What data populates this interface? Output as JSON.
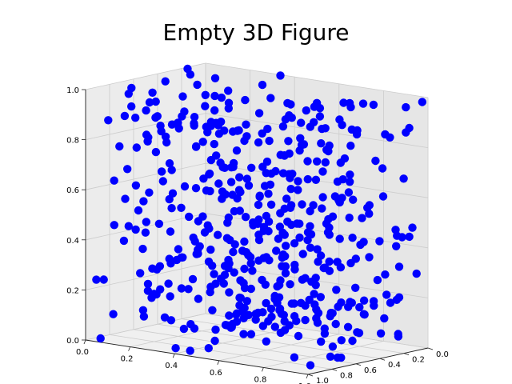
{
  "chart_data": {
    "type": "scatter",
    "projection": "3d",
    "title": "Empty 3D Figure",
    "xlabel": "",
    "ylabel": "",
    "zlabel": "",
    "xlim": [
      0,
      1
    ],
    "ylim": [
      0,
      1
    ],
    "zlim": [
      0,
      1
    ],
    "x_ticks": [
      "0.0",
      "0.2",
      "0.4",
      "0.6",
      "0.8",
      "1.0"
    ],
    "y_ticks": [
      "0.0",
      "0.2",
      "0.4",
      "0.6",
      "0.8",
      "1.0"
    ],
    "z_ticks": [
      "0.0",
      "0.2",
      "0.4",
      "0.6",
      "0.8",
      "1.0"
    ],
    "grid": true,
    "pane_color": "#e8e8e8",
    "marker_color": "#0000ff",
    "marker": "circle",
    "point_count": 500,
    "distribution": "uniform random in [0,1]^3 (individual values not recoverable)",
    "seed": 7
  }
}
